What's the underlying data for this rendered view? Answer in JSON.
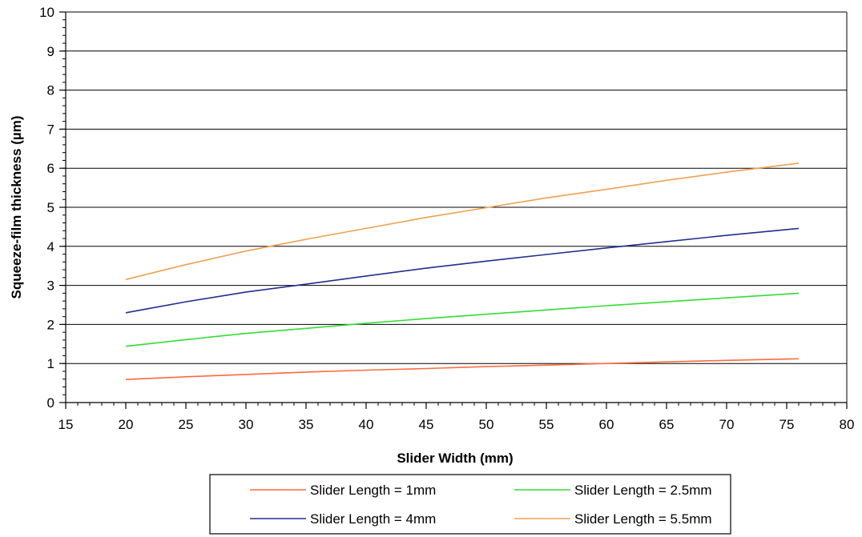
{
  "chart_data": {
    "type": "line",
    "title": "",
    "xlabel": "Slider Width (mm)",
    "ylabel": "Squeeze-film thickness (µm)",
    "xlim": [
      15,
      80
    ],
    "ylim": [
      0,
      10
    ],
    "xticks": [
      15,
      20,
      25,
      30,
      35,
      40,
      45,
      50,
      55,
      60,
      65,
      70,
      75,
      80
    ],
    "yticks": [
      0,
      1,
      2,
      3,
      4,
      5,
      6,
      7,
      8,
      9,
      10
    ],
    "grid": "horizontal major gridlines",
    "legend_position": "bottom",
    "x": [
      20,
      25,
      30,
      35,
      40,
      45,
      50,
      55,
      60,
      65,
      70,
      76
    ],
    "series": [
      {
        "name": "Slider Length = 1mm",
        "color": "#ff6a3d",
        "values": [
          0.59,
          0.66,
          0.72,
          0.78,
          0.83,
          0.87,
          0.92,
          0.96,
          1.0,
          1.04,
          1.08,
          1.12
        ]
      },
      {
        "name": "Slider Length = 2.5mm",
        "color": "#33dd33",
        "values": [
          1.44,
          1.61,
          1.77,
          1.9,
          2.03,
          2.15,
          2.26,
          2.37,
          2.48,
          2.58,
          2.68,
          2.8
        ]
      },
      {
        "name": "Slider Length = 4mm",
        "color": "#1f2f8f",
        "values": [
          2.3,
          2.58,
          2.83,
          3.03,
          3.24,
          3.44,
          3.62,
          3.79,
          3.96,
          4.12,
          4.28,
          4.46
        ]
      },
      {
        "name": "Slider Length = 5.5mm",
        "color": "#f0a050",
        "values": [
          3.15,
          3.53,
          3.88,
          4.18,
          4.46,
          4.74,
          4.99,
          5.24,
          5.46,
          5.69,
          5.9,
          6.13
        ]
      }
    ]
  }
}
